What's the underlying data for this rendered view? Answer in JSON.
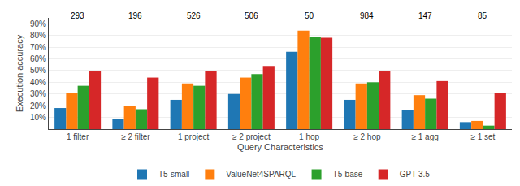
{
  "chart_data": {
    "type": "bar",
    "categories": [
      "1 filter",
      "≥ 2 filter",
      "1 project",
      "≥ 2 project",
      "1 hop",
      "≥ 2 hop",
      "≥ 1 agg",
      "≥ 1 set"
    ],
    "series": [
      {
        "name": "T5-small",
        "values": [
          18,
          9,
          25,
          30,
          66,
          25,
          16,
          6
        ]
      },
      {
        "name": "ValueNet4SPARQL",
        "values": [
          31,
          20,
          39,
          44,
          84,
          39,
          29,
          7
        ]
      },
      {
        "name": "T5-base",
        "values": [
          37,
          17,
          37,
          47,
          79,
          40,
          26,
          3
        ]
      },
      {
        "name": "GPT-3.5",
        "values": [
          50,
          44,
          50,
          54,
          78,
          50,
          41,
          31
        ]
      }
    ],
    "xlabel": "Query Characteristics",
    "ylabel": "Execution accuracy",
    "ylim": [
      0,
      95
    ],
    "yticks": [
      {
        "value": 10,
        "label": "10%"
      },
      {
        "value": 20,
        "label": "20%"
      },
      {
        "value": 30,
        "label": "30%"
      },
      {
        "value": 40,
        "label": "40%"
      },
      {
        "value": 50,
        "label": "50%"
      },
      {
        "value": 60,
        "label": "60%"
      },
      {
        "value": 70,
        "label": "70%"
      },
      {
        "value": 80,
        "label": "80%"
      },
      {
        "value": 90,
        "label": "90%"
      }
    ],
    "grid": true,
    "legend": "bottom",
    "annotations": [
      {
        "x": "1 filter",
        "y": 91.5,
        "text": "293"
      },
      {
        "x": "≥ 2 filter",
        "y": 91.5,
        "text": "196"
      },
      {
        "x": "1 project",
        "y": 91.5,
        "text": "526"
      },
      {
        "x": "≥ 2 project",
        "y": 91.5,
        "text": "506"
      },
      {
        "x": "1 hop",
        "y": 91.5,
        "text": "50"
      },
      {
        "x": "≥ 2 hop",
        "y": 91.5,
        "text": "984"
      },
      {
        "x": "≥ 1 agg",
        "y": 91.5,
        "text": "147"
      },
      {
        "x": "≥ 1 set",
        "y": 91.5,
        "text": "85"
      }
    ]
  }
}
